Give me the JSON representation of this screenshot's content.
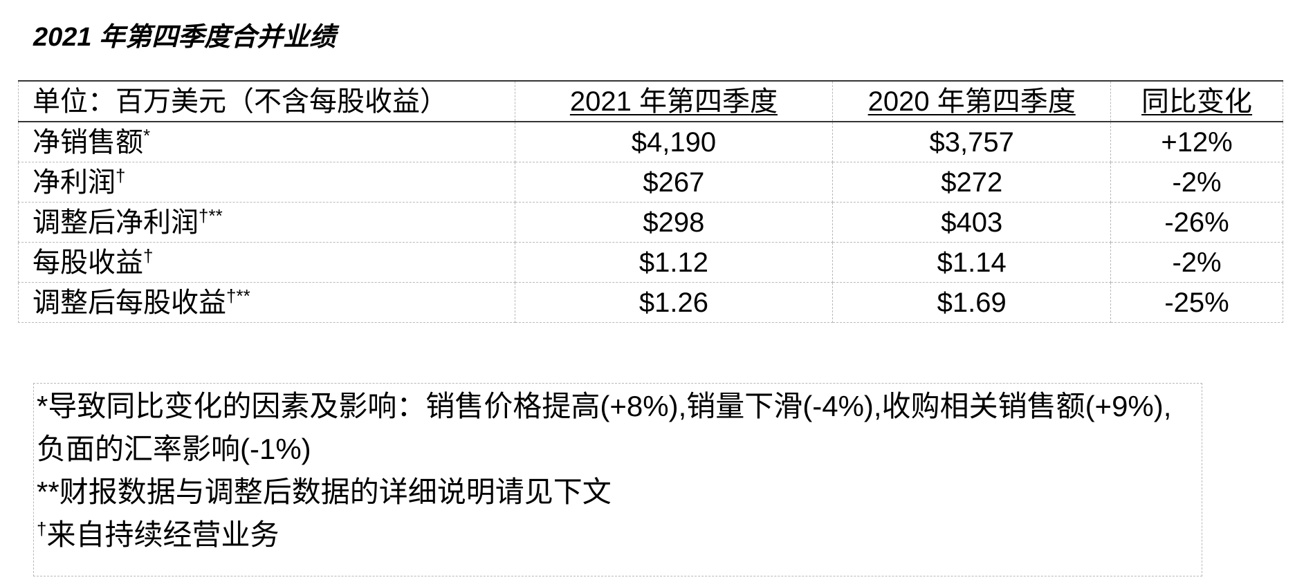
{
  "title": "2021 年第四季度合并业绩",
  "table": {
    "header": [
      "单位：百万美元（不含每股收益）",
      "2021 年第四季度",
      "2020 年第四季度",
      "同比变化"
    ],
    "rows": [
      {
        "label": "净销售额",
        "note": "*",
        "cells": [
          "$4,190",
          "$3,757",
          "+12%"
        ]
      },
      {
        "label": "净利润",
        "note": "†",
        "cells": [
          "$267",
          "$272",
          "-2%"
        ]
      },
      {
        "label": "调整后净利润",
        "note": "†**",
        "cells": [
          "$298",
          "$403",
          "-26%"
        ]
      },
      {
        "label": "每股收益",
        "note": "†",
        "cells": [
          "$1.12",
          "$1.14",
          "-2%"
        ]
      },
      {
        "label": "调整后每股收益",
        "note": "†**",
        "cells": [
          "$1.26",
          "$1.69",
          "-25%"
        ]
      }
    ]
  },
  "notes": [
    {
      "mark": "*",
      "text": "导致同比变化的因素及影响：销售价格提高(+8%),销量下滑(-4%),收购相关销售额(+9%),负面的汇率影响(-1%)"
    },
    {
      "mark": "**",
      "text": "财报数据与调整后数据的详细说明请见下文"
    },
    {
      "mark": "†",
      "text": "来自持续经营业务"
    }
  ]
}
